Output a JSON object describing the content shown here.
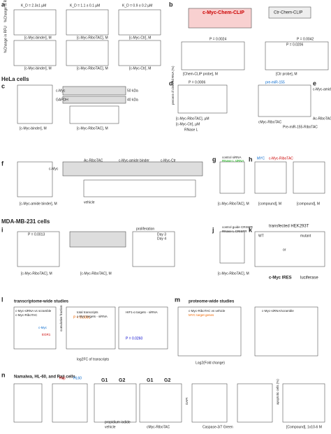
{
  "labels": [
    "a",
    "K_D = 2.3±1 µM",
    "K_D = 1.1 ± 0.1 µM",
    "K_D = 0.9 ± 0.2 µM",
    "%Change in RFU",
    "[c-Myc-binder], M",
    "[c-Myc-RiboTAC], M",
    "[c-Myc-Ctr], M",
    "%Change in RFU",
    "[c-Myc-binder], M",
    "[c-Myc-RiboTAC], M",
    "[c-Myc-Ctr], M",
    "b",
    "c-Myc-Chem-CLIP",
    "Ctr-Chem-CLIP",
    "P = 0.0024",
    "P = 0.0042",
    "P = 0.0206",
    "[Chem-CLIP probe], M",
    "[Ctr probe], M",
    "HeLa cells",
    "c",
    "c-Myc",
    "GAPDH",
    "50 kDa",
    "40 kDa",
    "[c-Myc-binder], M",
    "[c-Myc-RiboTAC], M",
    "d",
    "percent of cleaved RNA (%)",
    "P = 0.0006",
    "[c-Myc-RiboTAC], µM",
    "[c-Myc-Ctr], µM",
    "RNase L",
    "pre-miR-155",
    "cMyc-RiboTAC",
    "Pre-miR-155-RiboTAC",
    "e",
    "c-Myc-amide binder",
    "Ac-RiboTAC",
    "f",
    "c-Myc",
    "Ac-RiboTAC",
    "c-Myc-amide binder",
    "c-Myc-Ctr",
    "vehicle",
    "[c-Myc-amide binder], M",
    "g",
    "control siRNA",
    "RNase L siRNA",
    "[c-Myc-RiboTAC], M",
    "h",
    "MYC",
    "c-Myc-RiboTAC",
    "[compound], M",
    "[compound], M",
    "MDA-MB-231 cells",
    "i",
    "P = 0.0013",
    "proliferation",
    "Day 3",
    "Day 4",
    "[c-Myc-RiboTAC], M",
    "[c-Myc-RiboTAC], M",
    "j",
    "control guide CRISPR",
    "RNase L CRISPR",
    "[c-Myc-RiboTAC], M",
    "k",
    "transfected HEK293T",
    "WT",
    "mutant",
    "or",
    "c-Myc IRES",
    "luciferase",
    "l",
    "transcriptome-wide studies",
    "c-Myc-siRNA vs scramble",
    "c-Myc-RiboTAC",
    "EGR1",
    "c-Myc",
    "P < 0.0001",
    "P = 0.0260",
    "total transcripts",
    "c-Myc targets - siRNA",
    "HIF1-α targets - siRNA",
    "log2FC of transcripts",
    "cumulative fraction",
    "m",
    "proteome-wide studies",
    "c-Myc-RiboTAC vs vehicle",
    "MYC target genes",
    "c-Myc-siRNA/scramble",
    "Log2(Fold change)",
    "n",
    "Namalwa, HL-60, and Raji cells",
    "Raji",
    "HL60",
    "G1",
    "G2",
    "G1",
    "G2",
    "vehicle",
    "cMyc-RiboTAC",
    "propidium iodide",
    "Caspase-3/7 Green",
    "DAPI",
    "apoptotic cells (%)",
    "[Compound], 1x10-6 M"
  ]
}
